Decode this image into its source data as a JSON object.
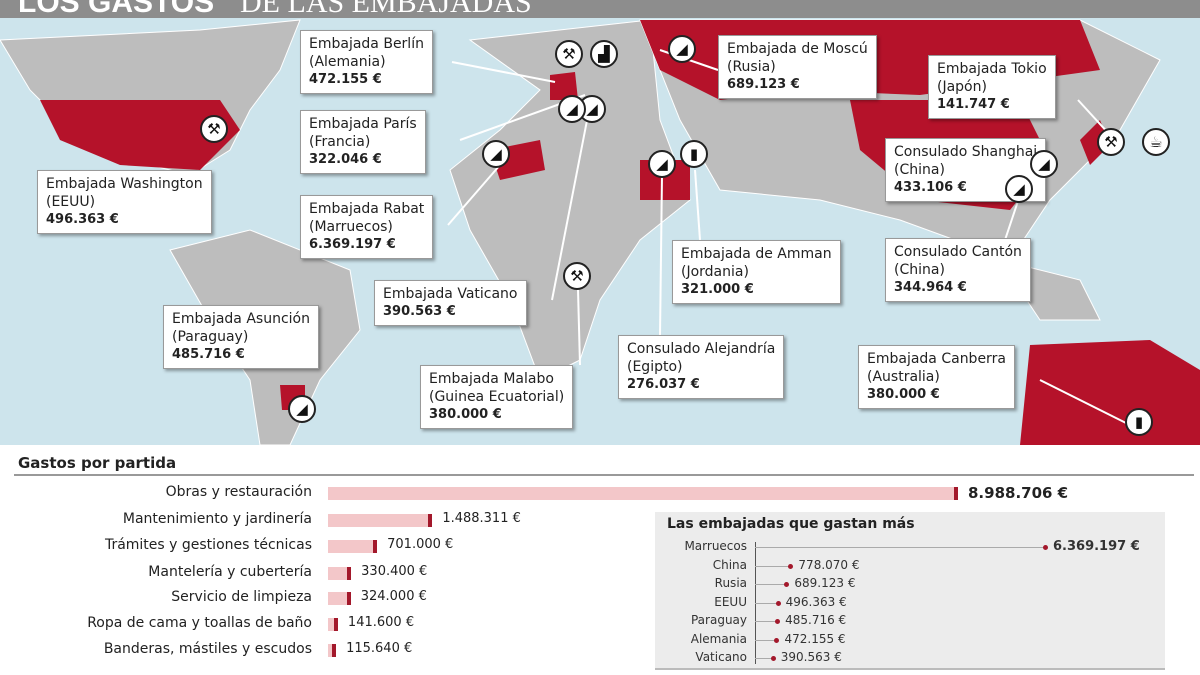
{
  "title": {
    "bold": "LOS GASTOS",
    "light": "DE LAS EMBAJADAS"
  },
  "callouts": [
    {
      "name": "Embajada Berlín",
      "country": "(Alemania)",
      "amount": "472.155 €",
      "icons": [
        "wrench",
        "paint-roller"
      ]
    },
    {
      "name": "Embajada de Moscú",
      "country": "(Rusia)",
      "amount": "689.123 €",
      "icons": [
        "trowel"
      ]
    },
    {
      "name": "Embajada Tokio",
      "country": "(Japón)",
      "amount": "141.747 €",
      "icons": [
        "wrench",
        "watering-can"
      ]
    },
    {
      "name": "Embajada París",
      "country": "(Francia)",
      "amount": "322.046 €",
      "icons": [
        "trowel"
      ]
    },
    {
      "name": "Embajada Washington",
      "country": "(EEUU)",
      "amount": "496.363 €",
      "icons": [
        "wrench"
      ]
    },
    {
      "name": "Embajada Rabat",
      "country": "(Marruecos)",
      "amount": "6.369.197 €",
      "icons": [
        "trowel"
      ]
    },
    {
      "name": "Consulado Shanghai",
      "country": "(China)",
      "amount": "433.106 €",
      "icons": [
        "trowel"
      ]
    },
    {
      "name": "Embajada de Amman",
      "country": "(Jordania)",
      "amount": "321.000 €",
      "icons": [
        "document"
      ]
    },
    {
      "name": "Consulado Cantón",
      "country": "(China)",
      "amount": "344.964 €",
      "icons": [
        "trowel"
      ]
    },
    {
      "name": "Embajada Vaticano",
      "country": "",
      "amount": "390.563 €",
      "icons": [
        "trowel"
      ]
    },
    {
      "name": "Embajada Asunción",
      "country": "(Paraguay)",
      "amount": "485.716 €",
      "icons": [
        "trowel"
      ]
    },
    {
      "name": "Consulado Alejandría",
      "country": "(Egipto)",
      "amount": "276.037 €",
      "icons": [
        "trowel"
      ]
    },
    {
      "name": "Embajada Malabo",
      "country": "(Guinea Ecuatorial)",
      "amount": "380.000 €",
      "icons": [
        "wrench"
      ]
    },
    {
      "name": "Embajada Canberra",
      "country": "(Australia)",
      "amount": "380.000 €",
      "icons": [
        "document"
      ]
    }
  ],
  "map_colors": {
    "ocean": "#cde4ec",
    "land": "#bdbdbd",
    "highlight": "#b5122a"
  },
  "chart_data": [
    {
      "type": "bar",
      "title": "Gastos por partida",
      "orientation": "horizontal",
      "categories": [
        "Obras y restauración",
        "Mantenimiento y jardinería",
        "Trámites y gestiones técnicas",
        "Mantelería y cubertería",
        "Servicio de limpieza",
        "Ropa de cama y toallas de baño",
        "Banderas, mástiles y escudos"
      ],
      "values": [
        8988706,
        1488311,
        701000,
        330400,
        324000,
        141600,
        115640
      ],
      "labels": [
        "8.988.706 €",
        "1.488.311 €",
        "701.000 €",
        "330.400 €",
        "324.000 €",
        "141.600 €",
        "115.640 €"
      ],
      "icons": [
        "trowel",
        "watering-can wrench",
        "document",
        "cutlery",
        "trowel",
        "iron",
        "flag"
      ]
    },
    {
      "type": "scatter",
      "title": "Las embajadas que gastan más",
      "orientation": "horizontal-dot",
      "categories": [
        "Marruecos",
        "China",
        "Rusia",
        "EEUU",
        "Paraguay",
        "Alemania",
        "Vaticano"
      ],
      "values": [
        6369197,
        778070,
        689123,
        496363,
        485716,
        472155,
        390563
      ],
      "labels": [
        "6.369.197 €",
        "778.070 €",
        "689.123 €",
        "496.363 €",
        "485.716 €",
        "472.155 €",
        "390.563 €"
      ]
    }
  ]
}
